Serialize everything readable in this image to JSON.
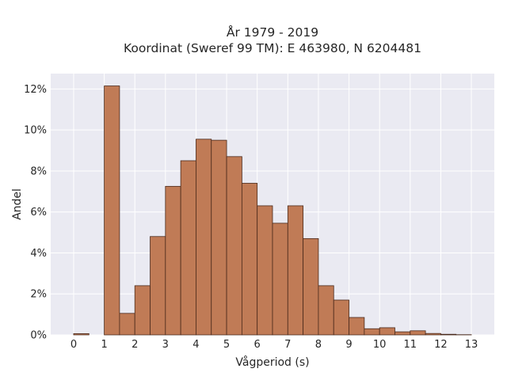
{
  "chart_data": {
    "type": "bar",
    "title_lines": [
      "År 1979 - 2019",
      "Koordinat (Sweref 99 TM): E 463980, N 6204481"
    ],
    "xlabel": "Vågperiod (s)",
    "ylabel": "Andel",
    "bin_width": 0.5,
    "bin_starts": [
      0,
      0.5,
      1,
      1.5,
      2,
      2.5,
      3,
      3.5,
      4,
      4.5,
      5,
      5.5,
      6,
      6.5,
      7,
      7.5,
      8,
      8.5,
      9,
      9.5,
      10,
      10.5,
      11,
      11.5,
      12,
      12.5
    ],
    "values": [
      0.06,
      0,
      12.15,
      1.05,
      2.4,
      4.8,
      7.25,
      8.5,
      9.55,
      9.5,
      8.7,
      7.4,
      6.3,
      5.45,
      6.3,
      4.7,
      2.4,
      1.7,
      0.85,
      0.3,
      0.35,
      0.15,
      0.2,
      0.07,
      0.03,
      0.01
    ],
    "xlim": [
      -0.75,
      13.75
    ],
    "ylim": [
      0,
      12.75
    ],
    "xticks": [
      0,
      1,
      2,
      3,
      4,
      5,
      6,
      7,
      8,
      9,
      10,
      11,
      12,
      13
    ],
    "yticks": [
      0,
      2,
      4,
      6,
      8,
      10,
      12
    ],
    "ytick_suffix": "%",
    "grid": true,
    "colors": {
      "plot_background": "#eaeaf2",
      "grid": "#ffffff",
      "bar_fill": "#c07b56",
      "bar_edge": "#4a2a1c"
    }
  }
}
